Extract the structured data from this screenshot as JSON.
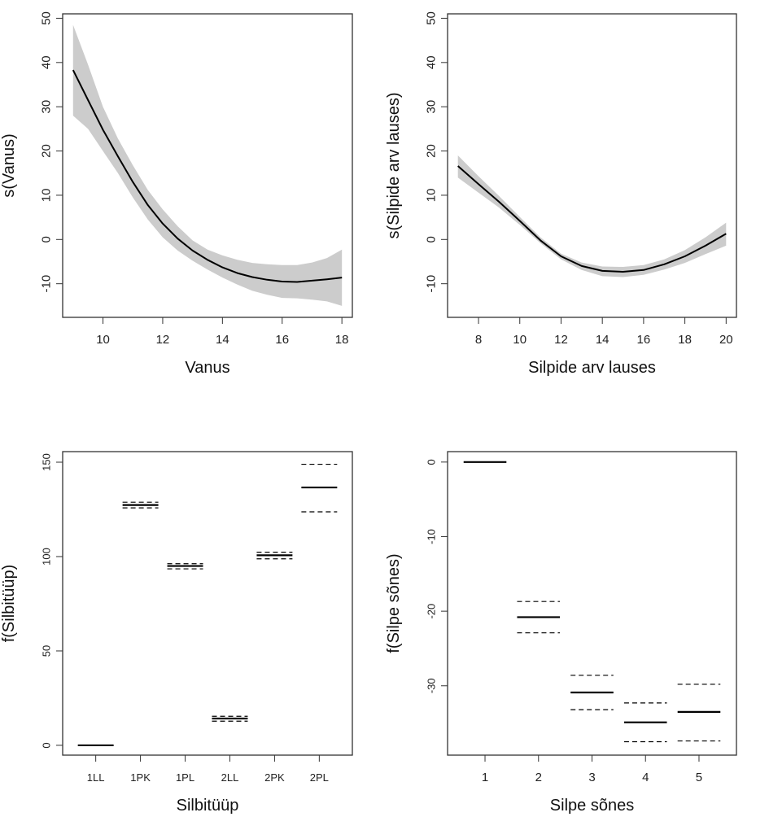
{
  "chart_data": [
    {
      "type": "line",
      "id": "panel-vanus",
      "title": "",
      "xlabel": "Vanus",
      "ylabel": "s(Vanus)",
      "xlim": [
        8.65,
        18.35
      ],
      "ylim": [
        -17.6,
        51.0
      ],
      "xticks": [
        10,
        12,
        14,
        16,
        18
      ],
      "yticks": [
        -10,
        0,
        10,
        20,
        30,
        40,
        50
      ],
      "grid": false,
      "series": [
        {
          "name": "fit",
          "x": [
            9,
            9.5,
            10,
            10.5,
            11,
            11.5,
            12,
            12.5,
            13,
            13.5,
            14,
            14.5,
            15,
            15.5,
            16,
            16.5,
            17,
            17.5,
            18
          ],
          "y": [
            38.3,
            31.5,
            24.8,
            18.8,
            13.0,
            7.8,
            3.6,
            0.2,
            -2.5,
            -4.6,
            -6.3,
            -7.6,
            -8.5,
            -9.1,
            -9.5,
            -9.6,
            -9.3,
            -9.0,
            -8.6
          ],
          "lower": [
            28.0,
            25.0,
            20.0,
            15.0,
            9.5,
            4.5,
            0.5,
            -2.5,
            -4.8,
            -6.8,
            -8.6,
            -10.2,
            -11.6,
            -12.5,
            -13.2,
            -13.3,
            -13.6,
            -14.0,
            -15.0
          ],
          "upper": [
            48.5,
            39.5,
            30.0,
            22.8,
            16.8,
            11.2,
            6.8,
            3.0,
            -0.2,
            -2.3,
            -3.6,
            -4.6,
            -5.3,
            -5.6,
            -5.8,
            -5.8,
            -5.2,
            -4.2,
            -2.3
          ]
        }
      ]
    },
    {
      "type": "line",
      "id": "panel-silpide",
      "title": "",
      "xlabel": "Silpide arv lauses",
      "ylabel": "s(Silpide arv lauses)",
      "xlim": [
        6.5,
        20.5
      ],
      "ylim": [
        -17.6,
        51.0
      ],
      "xticks": [
        8,
        10,
        12,
        14,
        16,
        18,
        20
      ],
      "yticks": [
        -10,
        0,
        10,
        20,
        30,
        40,
        50
      ],
      "grid": false,
      "series": [
        {
          "name": "fit",
          "x": [
            7,
            8,
            9,
            10,
            11,
            12,
            13,
            14,
            15,
            16,
            17,
            18,
            19,
            20
          ],
          "y": [
            16.6,
            12.5,
            8.5,
            4.2,
            -0.2,
            -3.8,
            -6.0,
            -7.1,
            -7.3,
            -6.9,
            -5.6,
            -3.8,
            -1.4,
            1.3
          ],
          "lower": [
            14.0,
            10.6,
            7.2,
            3.3,
            -0.8,
            -4.5,
            -6.9,
            -8.3,
            -8.5,
            -8.0,
            -6.8,
            -5.3,
            -3.3,
            -1.4
          ],
          "upper": [
            19.0,
            14.3,
            9.8,
            5.1,
            0.5,
            -3.2,
            -5.2,
            -6.1,
            -6.2,
            -5.8,
            -4.5,
            -2.4,
            0.5,
            3.8
          ]
        }
      ]
    },
    {
      "type": "categorical-effect",
      "id": "panel-silbituup",
      "title": "",
      "xlabel": "Silbitüüp",
      "ylabel": "f(Silbitüüp)",
      "categories": [
        "1LL",
        "1PK",
        "1PL",
        "2LL",
        "2PK",
        "2PL"
      ],
      "ylim": [
        -5.2,
        155.6
      ],
      "yticks": [
        0,
        50,
        100,
        150
      ],
      "grid": false,
      "values": [
        0,
        127.3,
        95.0,
        14.2,
        100.7,
        136.6
      ],
      "lower": [
        null,
        125.8,
        93.5,
        12.8,
        98.8,
        123.7
      ],
      "upper": [
        null,
        128.8,
        96.2,
        15.4,
        102.3,
        148.9
      ]
    },
    {
      "type": "categorical-effect",
      "id": "panel-silpe-sones",
      "title": "",
      "xlabel": "Silpe sõnes",
      "ylabel": "f(Silpe sõnes)",
      "categories": [
        "1",
        "2",
        "3",
        "4",
        "5"
      ],
      "ylim": [
        -39.3,
        1.4
      ],
      "yticks": [
        -30,
        -20,
        -10,
        0
      ],
      "grid": false,
      "values": [
        0,
        -20.8,
        -30.9,
        -34.9,
        -33.5
      ],
      "lower": [
        null,
        -22.9,
        -33.2,
        -37.5,
        -37.4
      ],
      "upper": [
        null,
        -18.7,
        -28.6,
        -32.3,
        -29.8
      ]
    }
  ],
  "colors": {
    "fit_line": "#000000",
    "ci_band": "#cccccc",
    "axes": "#333333"
  }
}
